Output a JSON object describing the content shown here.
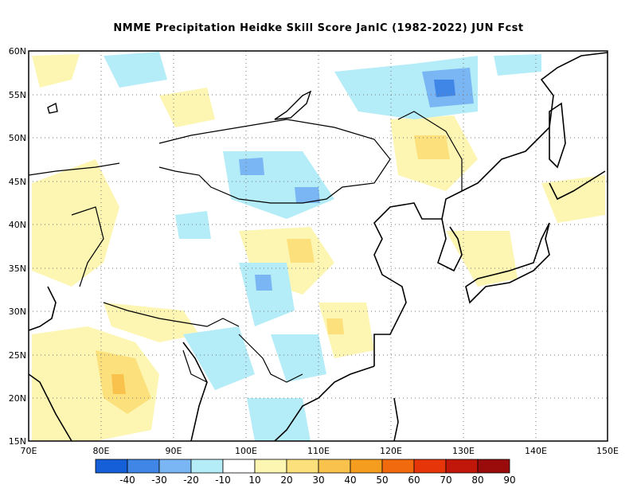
{
  "title": "NMME  Precipitation Heidke Skill Score JanIC (1982-2022) JUN Fcst",
  "map": {
    "lon_range": [
      70,
      150
    ],
    "lat_range": [
      15,
      60
    ],
    "lon_ticks": [
      "70E",
      "80E",
      "90E",
      "100E",
      "110E",
      "120E",
      "130E",
      "140E",
      "150E"
    ],
    "lat_ticks": [
      "15N",
      "20N",
      "25N",
      "30N",
      "35N",
      "40N",
      "45N",
      "50N",
      "55N",
      "60N"
    ]
  },
  "colorbar": {
    "labels": [
      "-40",
      "-30",
      "-20",
      "-10",
      "10",
      "20",
      "30",
      "40",
      "50",
      "60",
      "70",
      "80",
      "90"
    ],
    "colors": [
      "#1560d8",
      "#3f86e6",
      "#7bb6f4",
      "#b4ecf7",
      "#ffffff",
      "#fdf6b2",
      "#fbe07c",
      "#f8c24d",
      "#f49d1f",
      "#f26a0e",
      "#e7350a",
      "#c0170a",
      "#9a0c0c"
    ]
  }
}
